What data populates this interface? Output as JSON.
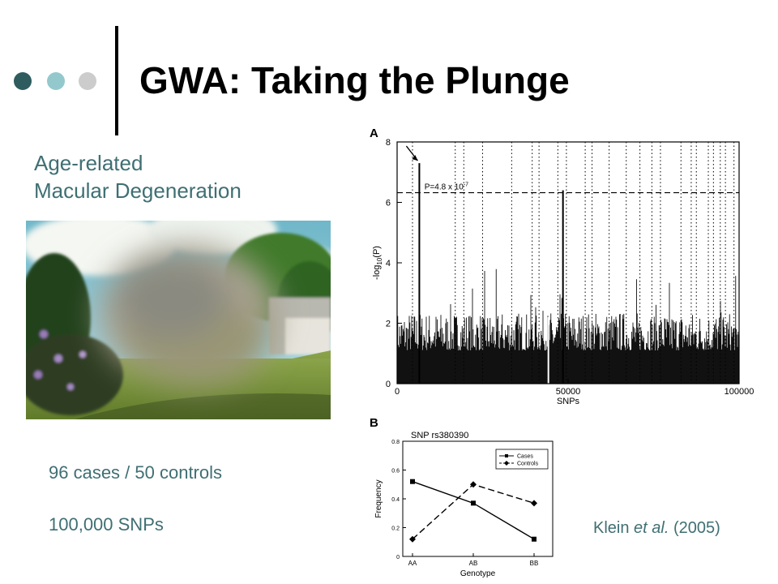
{
  "slide": {
    "title": "GWA: Taking the Plunge",
    "subtitle_line1": "Age-related",
    "subtitle_line2": "Macular Degeneration",
    "stat_cases": "96 cases / 50 controls",
    "stat_snps": "100,000 SNPs",
    "citation_pre": "Klein ",
    "citation_em": "et al.",
    "citation_post": " (2005)"
  },
  "colors": {
    "dot1": "#2f5c5f",
    "dot2": "#93c9cc",
    "dot3": "#cccccc",
    "text_accent": "#3f6f73"
  },
  "photo_icon": "blurred-landscape-photo",
  "chart_data": [
    {
      "panel_label": "A",
      "type": "bar",
      "xlabel": "SNPs",
      "ylabel_main": "-log",
      "ylabel_sub": "10",
      "ylabel_tail": "(P)",
      "xlim": [
        0,
        100000
      ],
      "ylim": [
        0,
        8
      ],
      "x_ticks": [
        0,
        50000,
        100000
      ],
      "y_ticks": [
        0,
        2,
        4,
        6,
        8
      ],
      "threshold": 6.32,
      "threshold_label_base": "P=4.8 x 10",
      "threshold_label_exp": "-7",
      "peaks": [
        {
          "x": 6500,
          "y": 7.3
        },
        {
          "x": 48500,
          "y": 6.4
        }
      ],
      "arrow_target": {
        "x": 6500,
        "y": 7.3
      },
      "vlines": [
        4500,
        17000,
        19500,
        25000,
        33500,
        39500,
        41500,
        47000,
        49500,
        55000,
        57000,
        62000,
        67000,
        71000,
        74500,
        77000,
        83000,
        86000,
        87500,
        91000,
        92500,
        94500,
        96000,
        98500
      ]
    },
    {
      "panel_label": "B",
      "type": "line",
      "title": "SNP rs380390",
      "xlabel": "Genotype",
      "ylabel": "Frequency",
      "categories": [
        "AA",
        "AB",
        "BB"
      ],
      "ylim": [
        0,
        0.8
      ],
      "y_ticks": [
        0,
        0.2,
        0.4,
        0.6,
        0.8
      ],
      "y_tick_labels": [
        "0",
        "0.2",
        "0.4",
        "0.6",
        "0.8"
      ],
      "legend": "top-right",
      "series": [
        {
          "name": "Cases",
          "values": [
            0.52,
            0.37,
            0.12
          ],
          "marker": "square",
          "dash": "solid"
        },
        {
          "name": "Controls",
          "values": [
            0.12,
            0.5,
            0.37
          ],
          "marker": "diamond",
          "dash": "dashed"
        }
      ]
    }
  ]
}
